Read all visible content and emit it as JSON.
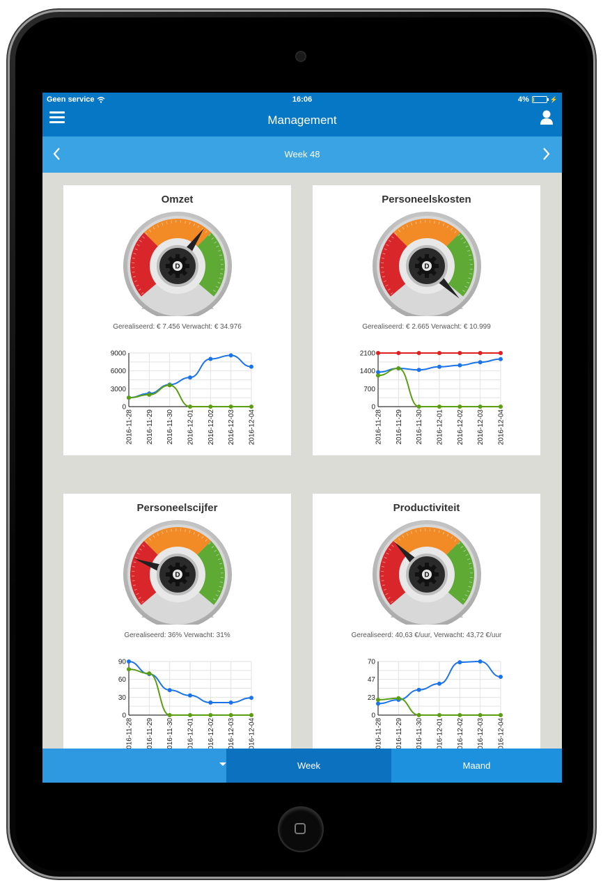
{
  "status": {
    "carrier": "Geen service",
    "time": "16:06",
    "battery": "4%",
    "battery_level": 0.04
  },
  "nav": {
    "title": "Management"
  },
  "week": {
    "label": "Week 48"
  },
  "cards": [
    {
      "title": "Omzet",
      "caption": "Gerealiseerd: € 7.456 Verwacht: € 34.976",
      "needle_deg": 35
    },
    {
      "title": "Personeelskosten",
      "caption": "Gerealiseerd: € 2.665 Verwacht: € 10.999",
      "needle_deg": 135
    },
    {
      "title": "Personeelscijfer",
      "caption": "Gerealiseerd: 36% Verwacht: 31%",
      "needle_deg": -70
    },
    {
      "title": "Productiviteit",
      "caption": "Gerealiseerd: 40,63 €/uur, Verwacht: 43,72 €/uur",
      "needle_deg": -45
    }
  ],
  "chart_data": [
    {
      "type": "line",
      "categories": [
        "2016-11-28",
        "2016-11-29",
        "2016-11-30",
        "2016-12-01",
        "2016-12-02",
        "2016-12-03",
        "2016-12-04"
      ],
      "yticks": [
        0,
        3000,
        6000,
        9000
      ],
      "ylim": [
        0,
        9000
      ],
      "series": [
        {
          "name": "blue",
          "color": "#1a73e8",
          "values": [
            1500,
            2200,
            3700,
            4900,
            8000,
            8600,
            6700
          ]
        },
        {
          "name": "green",
          "color": "#5a9e12",
          "values": [
            1500,
            2000,
            3600,
            0,
            0,
            0,
            0
          ]
        }
      ]
    },
    {
      "type": "line",
      "categories": [
        "2016-11-28",
        "2016-11-29",
        "2016-11-30",
        "2016-12-01",
        "2016-12-02",
        "2016-12-03",
        "2016-12-04"
      ],
      "yticks": [
        0,
        700,
        1400,
        2100
      ],
      "ylim": [
        0,
        2100
      ],
      "series": [
        {
          "name": "red",
          "color": "#e02020",
          "values": [
            2100,
            2100,
            2100,
            2100,
            2100,
            2100,
            2100
          ]
        },
        {
          "name": "blue",
          "color": "#1a73e8",
          "values": [
            1350,
            1500,
            1440,
            1560,
            1620,
            1740,
            1860
          ]
        },
        {
          "name": "green",
          "color": "#5a9e12",
          "values": [
            1220,
            1500,
            0,
            0,
            0,
            0,
            0
          ]
        }
      ]
    },
    {
      "type": "line",
      "categories": [
        "2016-11-28",
        "2016-11-29",
        "2016-11-30",
        "2016-12-01",
        "2016-12-02",
        "2016-12-03",
        "2016-12-04"
      ],
      "yticks": [
        0,
        30,
        60,
        90
      ],
      "ylim": [
        0,
        90
      ],
      "series": [
        {
          "name": "blue",
          "color": "#1a73e8",
          "values": [
            90,
            69,
            42,
            33,
            21,
            21,
            29
          ]
        },
        {
          "name": "green",
          "color": "#5a9e12",
          "values": [
            77,
            70,
            0,
            0,
            0,
            0,
            0
          ]
        }
      ]
    },
    {
      "type": "line",
      "categories": [
        "2016-11-28",
        "2016-11-29",
        "2016-11-30",
        "2016-12-01",
        "2016-12-02",
        "2016-12-03",
        "2016-12-04"
      ],
      "yticks": [
        0,
        23,
        47,
        70
      ],
      "ylim": [
        0,
        70
      ],
      "series": [
        {
          "name": "blue",
          "color": "#1a73e8",
          "values": [
            15,
            20,
            33,
            41,
            69,
            70,
            50
          ]
        },
        {
          "name": "green",
          "color": "#5a9e12",
          "values": [
            20,
            22,
            0,
            0,
            0,
            0,
            0
          ]
        }
      ]
    }
  ],
  "tabs": {
    "week": "Week",
    "month": "Maand"
  }
}
